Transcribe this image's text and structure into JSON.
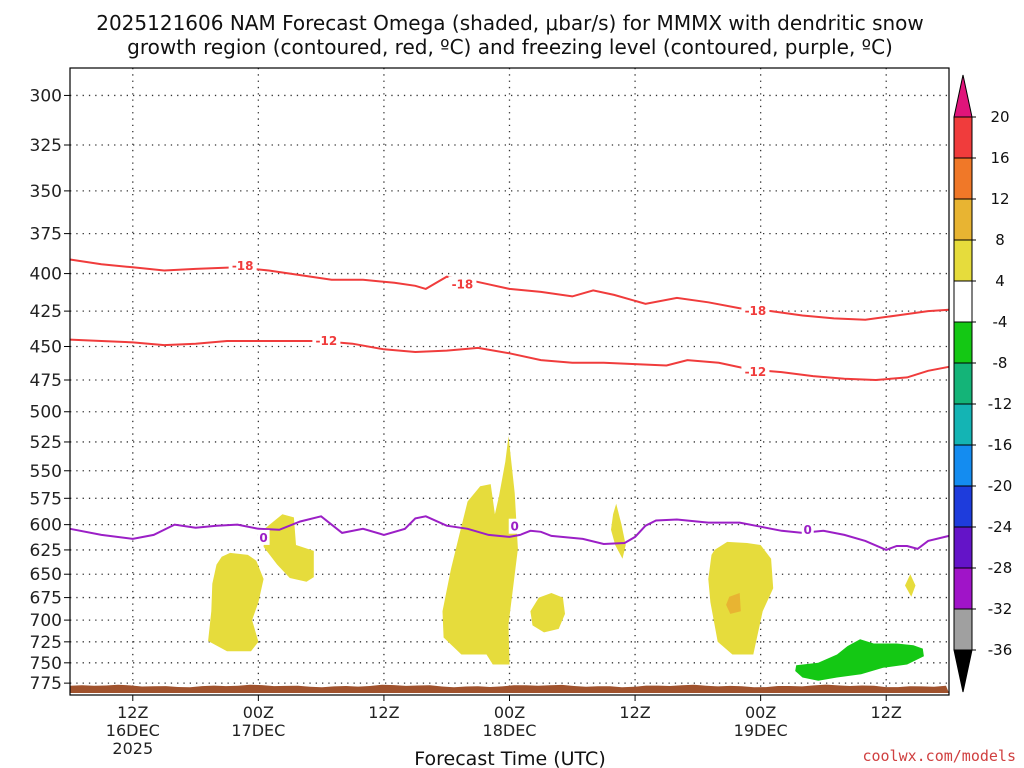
{
  "chart_data": {
    "type": "contour",
    "title_line1": "2025121606 NAM Forecast Omega (shaded, μbar/s) for MMMX with dendritic snow",
    "title_line2": "growth region (contoured, red, ºC) and freezing level (contoured, purple, ºC)",
    "xlabel": "Forecast Time (UTC)",
    "credit": "coolwx.com/models",
    "y_axis": {
      "ticks": [
        300,
        325,
        350,
        375,
        400,
        425,
        450,
        475,
        500,
        525,
        550,
        575,
        600,
        625,
        650,
        675,
        700,
        725,
        750,
        775
      ],
      "log_range": [
        287,
        790
      ]
    },
    "x_axis": {
      "range_hours": [
        6,
        90
      ],
      "ticks": [
        {
          "h": 12,
          "lines": [
            "12Z",
            "16DEC",
            "2025"
          ]
        },
        {
          "h": 24,
          "lines": [
            "00Z",
            "17DEC"
          ]
        },
        {
          "h": 36,
          "lines": [
            "12Z"
          ]
        },
        {
          "h": 48,
          "lines": [
            "00Z",
            "18DEC"
          ]
        },
        {
          "h": 60,
          "lines": [
            "12Z"
          ]
        },
        {
          "h": 72,
          "lines": [
            "00Z",
            "19DEC"
          ]
        },
        {
          "h": 84,
          "lines": [
            "12Z"
          ]
        }
      ]
    },
    "colorbar": {
      "labels": [
        "20",
        "16",
        "12",
        "8",
        "4",
        "-4",
        "-8",
        "-12",
        "-16",
        "-20",
        "-24",
        "-28",
        "-32",
        "-36"
      ],
      "colors": [
        "#f03c3c",
        "#f07828",
        "#e8b432",
        "#e6dc3c",
        "#ffffff",
        "#14c814",
        "#14b478",
        "#14b4b4",
        "#148cf0",
        "#1e3cdc",
        "#6414c8",
        "#a014c8",
        "#a0a0a0"
      ],
      "top_triangle": "#e0147a",
      "bottom_triangle": "#000000"
    },
    "contours": [
      {
        "name": "temp -18",
        "label": "-18",
        "color": "#f03c3c",
        "label_positions": [
          [
            22.5,
            395
          ],
          [
            43.5,
            407
          ],
          [
            71.5,
            425
          ]
        ],
        "points": [
          [
            6,
            391
          ],
          [
            9,
            394
          ],
          [
            12,
            396
          ],
          [
            15,
            398
          ],
          [
            18,
            397
          ],
          [
            22,
            396
          ],
          [
            25,
            398
          ],
          [
            28,
            401
          ],
          [
            31,
            404
          ],
          [
            34,
            404
          ],
          [
            37,
            406
          ],
          [
            39,
            408
          ],
          [
            40,
            410
          ],
          [
            41,
            406
          ],
          [
            42,
            402
          ],
          [
            44,
            404
          ],
          [
            46,
            407
          ],
          [
            48,
            410
          ],
          [
            51,
            412
          ],
          [
            54,
            415
          ],
          [
            56,
            411
          ],
          [
            58,
            414
          ],
          [
            61,
            420
          ],
          [
            64,
            416
          ],
          [
            67,
            419
          ],
          [
            70,
            423
          ],
          [
            73,
            425
          ],
          [
            76,
            428
          ],
          [
            79,
            430
          ],
          [
            82,
            431
          ],
          [
            85,
            428
          ],
          [
            88,
            425
          ],
          [
            90,
            424
          ]
        ]
      },
      {
        "name": "temp -12",
        "label": "-12",
        "color": "#f03c3c",
        "label_positions": [
          [
            30.5,
            446
          ],
          [
            71.5,
            469
          ]
        ],
        "points": [
          [
            6,
            445
          ],
          [
            9,
            446
          ],
          [
            12,
            447
          ],
          [
            15,
            449
          ],
          [
            18,
            448
          ],
          [
            21,
            446
          ],
          [
            24,
            446
          ],
          [
            27,
            446
          ],
          [
            30,
            446
          ],
          [
            33,
            448
          ],
          [
            36,
            452
          ],
          [
            39,
            454
          ],
          [
            42,
            453
          ],
          [
            45,
            451
          ],
          [
            48,
            455
          ],
          [
            51,
            460
          ],
          [
            54,
            462
          ],
          [
            57,
            462
          ],
          [
            60,
            463
          ],
          [
            63,
            464
          ],
          [
            65,
            460
          ],
          [
            68,
            462
          ],
          [
            71,
            467
          ],
          [
            74,
            469
          ],
          [
            77,
            472
          ],
          [
            80,
            474
          ],
          [
            83,
            475
          ],
          [
            86,
            473
          ],
          [
            88,
            468
          ],
          [
            90,
            465
          ]
        ]
      },
      {
        "name": "freezing level 0",
        "label": "0",
        "color": "#9b1fc6",
        "label_positions": [
          [
            24.5,
            613
          ],
          [
            48.5,
            602
          ],
          [
            76.5,
            605
          ]
        ],
        "points": [
          [
            6,
            604
          ],
          [
            9,
            610
          ],
          [
            12,
            614
          ],
          [
            14,
            610
          ],
          [
            16,
            600
          ],
          [
            18,
            603
          ],
          [
            20,
            601
          ],
          [
            22,
            600
          ],
          [
            24,
            604
          ],
          [
            26,
            605
          ],
          [
            28,
            597
          ],
          [
            30,
            592
          ],
          [
            32,
            608
          ],
          [
            34,
            604
          ],
          [
            36,
            610
          ],
          [
            38,
            604
          ],
          [
            39,
            594
          ],
          [
            40,
            592
          ],
          [
            42,
            601
          ],
          [
            44,
            604
          ],
          [
            46,
            610
          ],
          [
            48,
            612
          ],
          [
            49,
            610
          ],
          [
            50,
            606
          ],
          [
            51,
            607
          ],
          [
            52,
            611
          ],
          [
            53,
            612
          ],
          [
            55,
            614
          ],
          [
            57,
            619
          ],
          [
            59,
            618
          ],
          [
            60,
            612
          ],
          [
            61,
            601
          ],
          [
            62,
            596
          ],
          [
            64,
            595
          ],
          [
            67,
            598
          ],
          [
            70,
            598
          ],
          [
            72,
            602
          ],
          [
            74,
            606
          ],
          [
            76,
            608
          ],
          [
            78,
            606
          ],
          [
            80,
            610
          ],
          [
            82,
            616
          ],
          [
            84,
            625
          ],
          [
            85,
            621
          ],
          [
            86,
            621
          ],
          [
            87,
            624
          ],
          [
            88,
            616
          ],
          [
            90,
            611
          ]
        ]
      }
    ],
    "omega_regions": [
      {
        "value_range": "4 to 8",
        "color": "#e6dc3c",
        "points": [
          [
            20.5,
            632
          ],
          [
            21.3,
            628
          ],
          [
            23.0,
            630
          ],
          [
            23.8,
            636
          ],
          [
            24.5,
            655
          ],
          [
            24.0,
            680
          ],
          [
            23.4,
            700
          ],
          [
            24.0,
            725
          ],
          [
            23.3,
            736
          ],
          [
            21.0,
            736
          ],
          [
            19.2,
            724
          ],
          [
            19.5,
            690
          ],
          [
            19.6,
            660
          ],
          [
            20.0,
            640
          ]
        ]
      },
      {
        "value_range": "4 to 8",
        "color": "#e6dc3c",
        "points": [
          [
            24.6,
            604
          ],
          [
            26.3,
            590
          ],
          [
            27.4,
            593
          ],
          [
            27.6,
            620
          ],
          [
            29.3,
            626
          ],
          [
            29.3,
            653
          ],
          [
            28.6,
            658
          ],
          [
            27.0,
            654
          ],
          [
            25.8,
            640
          ],
          [
            24.5,
            622
          ]
        ]
      },
      {
        "value_range": "4 to 8",
        "color": "#e6dc3c",
        "points": [
          [
            44.0,
            578
          ],
          [
            45.2,
            564
          ],
          [
            46.2,
            562
          ],
          [
            46.6,
            590
          ],
          [
            47.0,
            573
          ],
          [
            47.6,
            542
          ],
          [
            47.9,
            520
          ],
          [
            48.5,
            570
          ],
          [
            48.8,
            624
          ],
          [
            47.9,
            705
          ],
          [
            48.0,
            752
          ],
          [
            46.4,
            752
          ],
          [
            45.8,
            740
          ],
          [
            43.4,
            740
          ],
          [
            41.7,
            720
          ],
          [
            41.6,
            690
          ],
          [
            42.4,
            645
          ],
          [
            43.2,
            610
          ]
        ]
      },
      {
        "value_range": "4 to 8",
        "color": "#e6dc3c",
        "points": [
          [
            50.8,
            675
          ],
          [
            52.0,
            670
          ],
          [
            53.1,
            675
          ],
          [
            53.3,
            693
          ],
          [
            52.7,
            710
          ],
          [
            51.3,
            714
          ],
          [
            50.2,
            706
          ],
          [
            50.0,
            690
          ]
        ]
      },
      {
        "value_range": "4 to 8",
        "color": "#e6dc3c",
        "points": [
          [
            57.9,
            590
          ],
          [
            58.2,
            580
          ],
          [
            58.7,
            600
          ],
          [
            59.1,
            620
          ],
          [
            58.8,
            634
          ],
          [
            58.1,
            620
          ],
          [
            57.7,
            605
          ]
        ]
      },
      {
        "value_range": "4 to 8",
        "color": "#e6dc3c",
        "points": [
          [
            67.6,
            625
          ],
          [
            68.8,
            617
          ],
          [
            70.7,
            618
          ],
          [
            72.0,
            620
          ],
          [
            73.0,
            634
          ],
          [
            73.2,
            665
          ],
          [
            72.2,
            690
          ],
          [
            71.3,
            740
          ],
          [
            69.3,
            740
          ],
          [
            67.9,
            725
          ],
          [
            67.2,
            680
          ],
          [
            67.0,
            655
          ],
          [
            67.3,
            630
          ]
        ]
      },
      {
        "value_range": "4 to 8",
        "color": "#e6dc3c",
        "points": [
          [
            86.3,
            650
          ],
          [
            86.8,
            662
          ],
          [
            86.4,
            674
          ],
          [
            85.8,
            662
          ]
        ]
      },
      {
        "value_range": "8 to 12",
        "color": "#e8b432",
        "points": [
          [
            69.0,
            674
          ],
          [
            70.0,
            670
          ],
          [
            70.1,
            690
          ],
          [
            69.1,
            693
          ],
          [
            68.7,
            683
          ]
        ]
      },
      {
        "value_range": "-4 to -8",
        "color": "#14c814",
        "points": [
          [
            75.4,
            753
          ],
          [
            77.5,
            750
          ],
          [
            79.3,
            740
          ],
          [
            80.3,
            730
          ],
          [
            81.5,
            722
          ],
          [
            82.8,
            727
          ],
          [
            85.0,
            727
          ],
          [
            86.6,
            729
          ],
          [
            87.5,
            733
          ],
          [
            87.6,
            742
          ],
          [
            86.0,
            752
          ],
          [
            83.7,
            756
          ],
          [
            81.6,
            764
          ],
          [
            79.3,
            768
          ],
          [
            77.5,
            772
          ],
          [
            76.0,
            768
          ],
          [
            75.3,
            760
          ]
        ]
      }
    ],
    "ground_color": "#a0522d"
  }
}
